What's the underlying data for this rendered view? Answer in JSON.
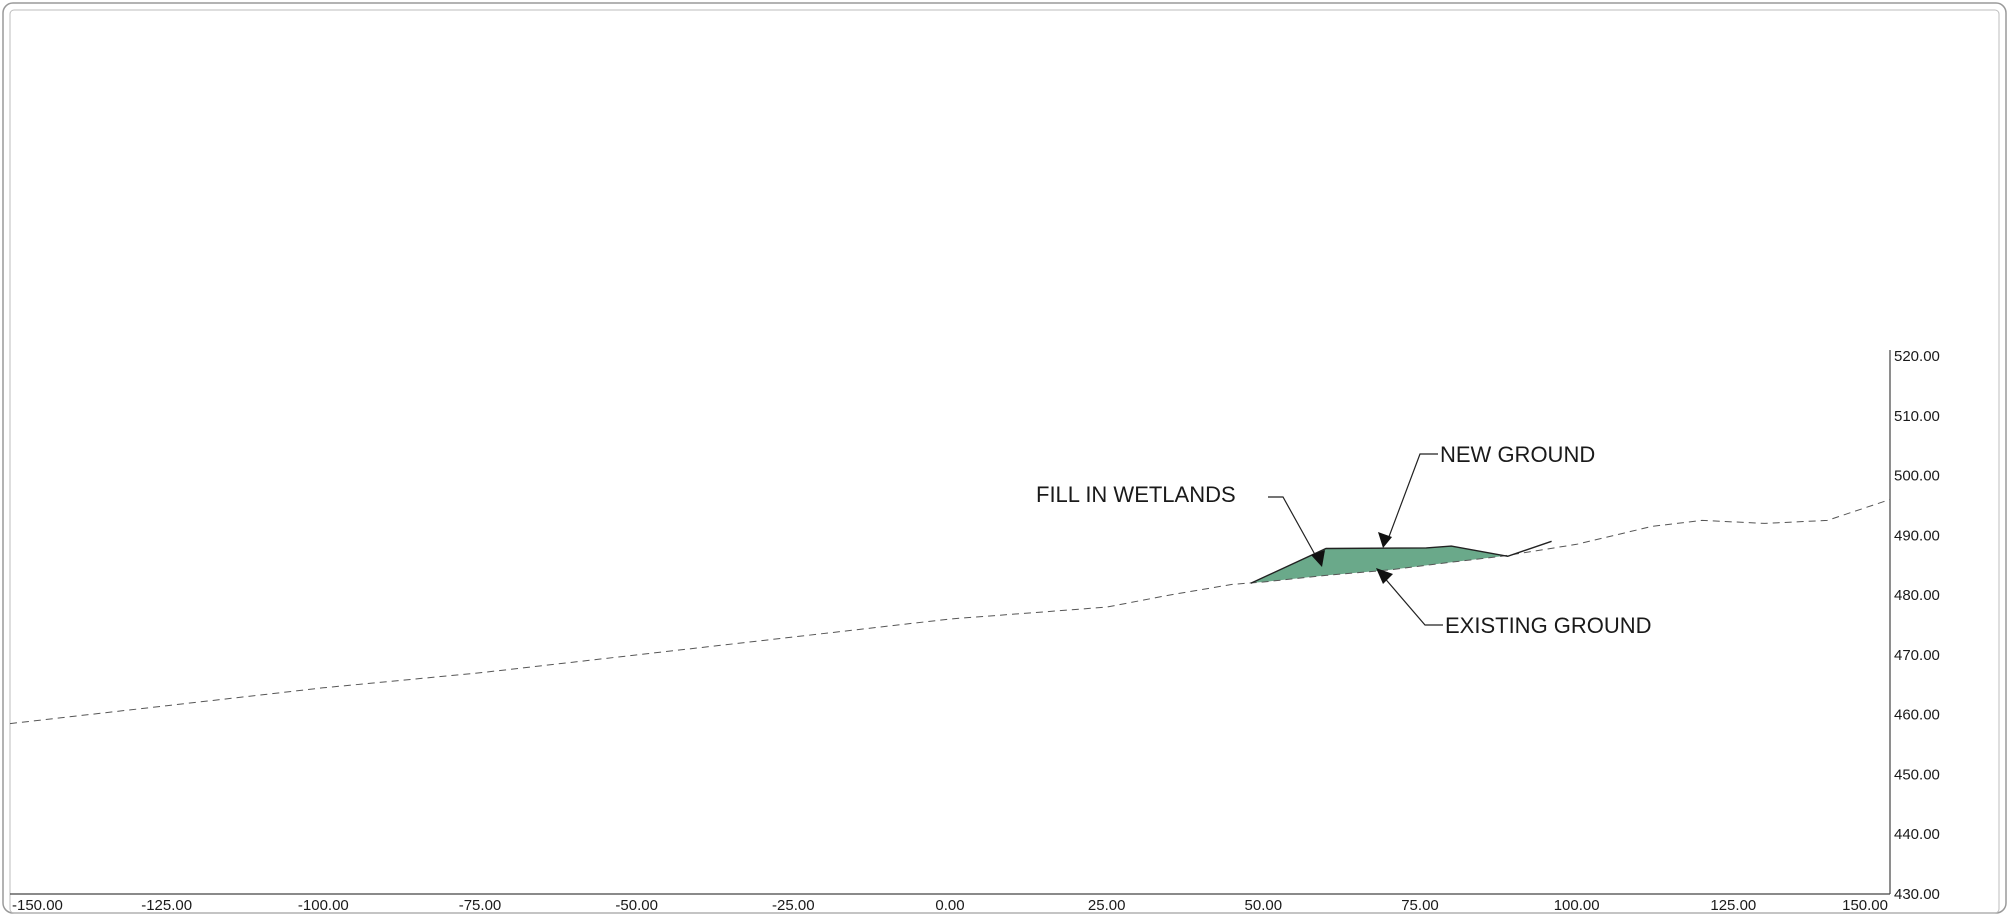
{
  "chart_data": {
    "type": "line",
    "title": "",
    "xlabel": "",
    "ylabel": "",
    "xlim": [
      -150,
      150
    ],
    "ylim": [
      430,
      520
    ],
    "x_ticks": [
      "-150.00",
      "-125.00",
      "-100.00",
      "-75.00",
      "-50.00",
      "-25.00",
      "0.00",
      "25.00",
      "50.00",
      "75.00",
      "100.00",
      "125.00",
      "150.00"
    ],
    "y_ticks": [
      "430.00",
      "440.00",
      "450.00",
      "460.00",
      "470.00",
      "480.00",
      "490.00",
      "500.00",
      "510.00",
      "520.00"
    ],
    "grid": false,
    "series": [
      {
        "name": "EXISTING GROUND",
        "style": "dashed",
        "color": "#555555",
        "points": [
          [
            -150,
            458.5
          ],
          [
            -125,
            461.5
          ],
          [
            -100,
            464.5
          ],
          [
            -75,
            467
          ],
          [
            -50,
            470
          ],
          [
            -25,
            473
          ],
          [
            0,
            476
          ],
          [
            25,
            478
          ],
          [
            35,
            480
          ],
          [
            45,
            481.8
          ],
          [
            50,
            482.2
          ],
          [
            60,
            483.3
          ],
          [
            70,
            484.2
          ],
          [
            80,
            485.5
          ],
          [
            88,
            486.5
          ],
          [
            100,
            488.5
          ],
          [
            112,
            491.5
          ],
          [
            120,
            492.5
          ],
          [
            130,
            492
          ],
          [
            140,
            492.5
          ],
          [
            150,
            496
          ]
        ]
      },
      {
        "name": "NEW GROUND",
        "style": "solid",
        "color": "#222222",
        "points": [
          [
            48,
            482
          ],
          [
            60,
            487.8
          ],
          [
            76,
            487.9
          ],
          [
            80,
            488.2
          ],
          [
            89,
            486.5
          ],
          [
            96,
            489
          ]
        ]
      }
    ],
    "fill_area": {
      "name": "FILL IN WETLANDS",
      "color": "#6aa98a"
    },
    "annotations": [
      {
        "text": "NEW GROUND",
        "points_to": "new ground top near x=73"
      },
      {
        "text": "FILL IN WETLANDS",
        "points_to": "fill area near x=62"
      },
      {
        "text": "EXISTING GROUND",
        "points_to": "existing ground near x=72"
      }
    ]
  }
}
